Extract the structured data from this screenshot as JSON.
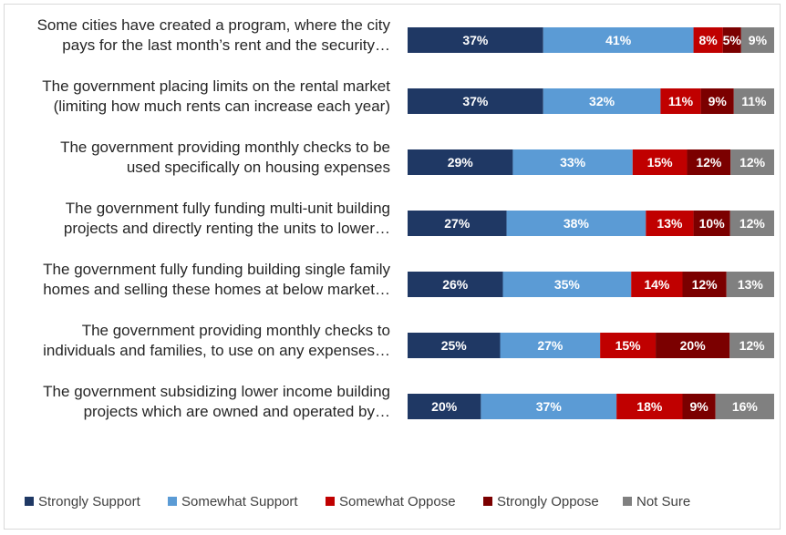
{
  "chart_data": {
    "type": "bar",
    "orientation": "horizontal",
    "stacked": true,
    "categories": [
      [
        "Some cities have created a program, where the city",
        "pays for the last month’s rent and the security…"
      ],
      [
        "The government placing limits on the rental market",
        "(limiting how much rents can increase each year)"
      ],
      [
        "The government providing monthly checks to be",
        "used specifically on housing expenses"
      ],
      [
        "The government fully funding multi-unit building",
        "projects and directly renting the units to lower…"
      ],
      [
        "The government fully funding building single family",
        "homes and selling these homes at below market…"
      ],
      [
        "The government providing monthly checks to",
        "individuals and families, to use on any expenses…"
      ],
      [
        "The government subsidizing lower income building",
        "projects which are owned and operated by…"
      ]
    ],
    "series": [
      {
        "name": "Strongly Support",
        "color": "#1f3864",
        "values": [
          37,
          37,
          29,
          27,
          26,
          25,
          20
        ]
      },
      {
        "name": "Somewhat Support",
        "color": "#5b9bd5",
        "values": [
          41,
          32,
          33,
          38,
          35,
          27,
          37
        ]
      },
      {
        "name": "Somewhat Oppose",
        "color": "#c00000",
        "values": [
          8,
          11,
          15,
          13,
          14,
          15,
          18
        ]
      },
      {
        "name": "Strongly Oppose",
        "color": "#7b0000",
        "values": [
          5,
          9,
          12,
          10,
          12,
          20,
          9
        ]
      },
      {
        "name": "Not Sure",
        "color": "#808080",
        "values": [
          9,
          11,
          12,
          12,
          13,
          12,
          16
        ]
      }
    ],
    "value_suffix": "%",
    "title": "",
    "xlabel": "",
    "ylabel": "",
    "legend": "bottom"
  }
}
